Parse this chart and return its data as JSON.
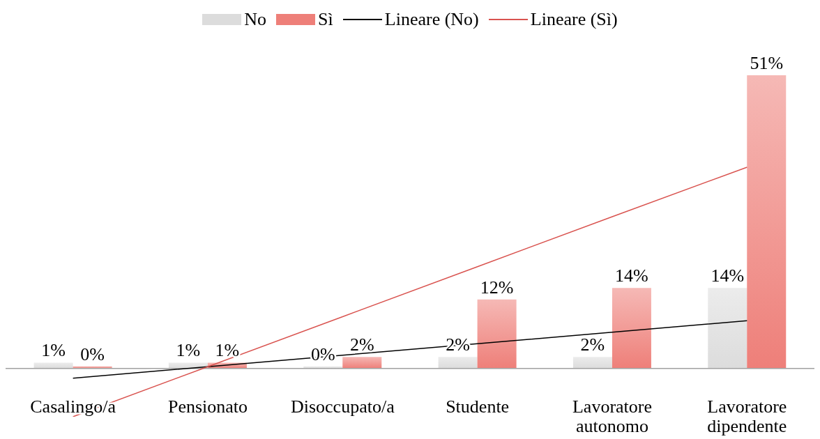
{
  "chart_data": {
    "type": "bar",
    "categories": [
      "Casalingo/a",
      "Pensionato",
      "Disoccupato/a",
      "Studente",
      "Lavoratore autonomo",
      "Lavoratore dipendente"
    ],
    "series": [
      {
        "name": "No",
        "color": "#dcdcdc",
        "values": [
          1,
          1,
          0,
          2,
          2,
          14
        ],
        "value_labels": [
          "1%",
          "1%",
          "0%",
          "2%",
          "2%",
          "14%"
        ]
      },
      {
        "name": "Sì",
        "color": "#ee7f79",
        "values": [
          0,
          1,
          2,
          12,
          14,
          51
        ],
        "value_labels": [
          "0%",
          "1%",
          "2%",
          "12%",
          "14%",
          "51%"
        ]
      },
      {
        "name": "Lineare (No)",
        "type": "line",
        "color": "#000000",
        "values": [
          -1.7,
          0.3,
          2.3,
          4.3,
          6.3,
          8.3
        ]
      },
      {
        "name": "Lineare (Sì)",
        "type": "line",
        "color": "#d9534f",
        "values": [
          -8.4,
          0.3,
          9.0,
          17.7,
          26.4,
          35.0
        ]
      }
    ],
    "legend": "top",
    "marker": "none"
  }
}
